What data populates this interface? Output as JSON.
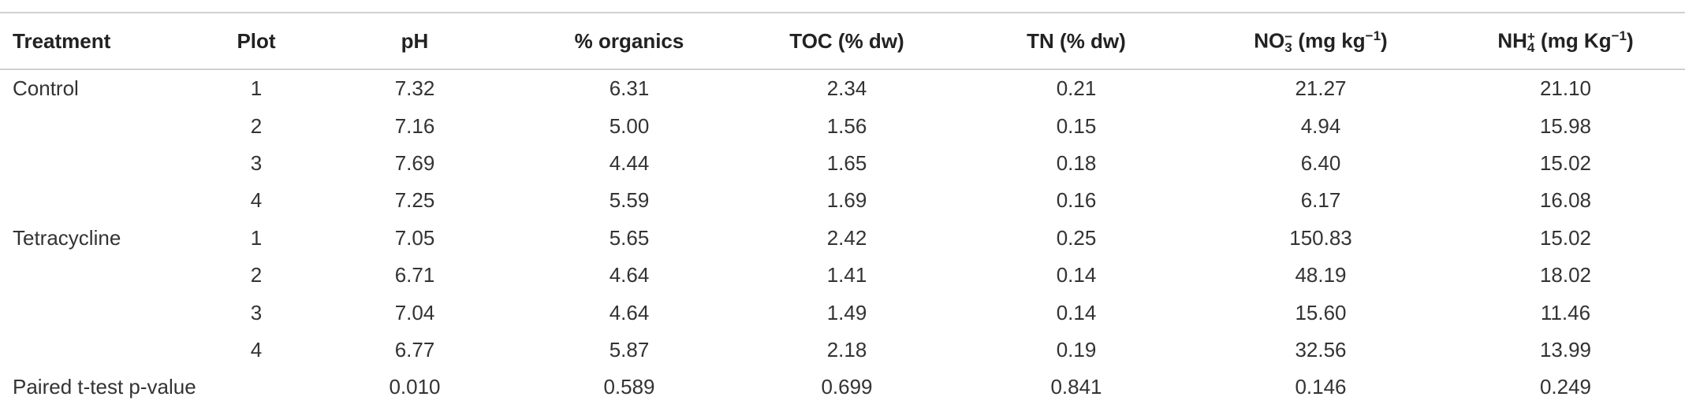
{
  "table": {
    "header": [
      [
        {
          "text": "Treatment"
        }
      ],
      [
        {
          "text": "Plot"
        }
      ],
      [
        {
          "text": "pH"
        }
      ],
      [
        {
          "text": "% organics"
        }
      ],
      [
        {
          "text": "TOC (% dw)"
        }
      ],
      [
        {
          "text": "TN (% dw)"
        }
      ],
      [
        {
          "text": "NO"
        },
        {
          "sub": "3",
          "sup": "−"
        },
        {
          "text": " (mg kg"
        },
        {
          "sup": "−1"
        },
        {
          "text": ")"
        }
      ],
      [
        {
          "text": "NH"
        },
        {
          "sub": "4",
          "sup": "+"
        },
        {
          "text": " (mg Kg"
        },
        {
          "sup": "−1"
        },
        {
          "text": ")"
        }
      ]
    ],
    "groups": [
      {
        "treatment": "Control",
        "rows": [
          [
            "1",
            "7.32",
            "6.31",
            "2.34",
            "0.21",
            "21.27",
            "21.10"
          ],
          [
            "2",
            "7.16",
            "5.00",
            "1.56",
            "0.15",
            "4.94",
            "15.98"
          ],
          [
            "3",
            "7.69",
            "4.44",
            "1.65",
            "0.18",
            "6.40",
            "15.02"
          ],
          [
            "4",
            "7.25",
            "5.59",
            "1.69",
            "0.16",
            "6.17",
            "16.08"
          ]
        ]
      },
      {
        "treatment": "Tetracycline",
        "rows": [
          [
            "1",
            "7.05",
            "5.65",
            "2.42",
            "0.25",
            "150.83",
            "15.02"
          ],
          [
            "2",
            "6.71",
            "4.64",
            "1.41",
            "0.14",
            "48.19",
            "18.02"
          ],
          [
            "3",
            "7.04",
            "4.64",
            "1.49",
            "0.14",
            "15.60",
            "11.46"
          ],
          [
            "4",
            "6.77",
            "5.87",
            "2.18",
            "0.19",
            "32.56",
            "13.99"
          ]
        ]
      }
    ],
    "footer": {
      "label": "Paired t-test p-value",
      "values": [
        "0.010",
        "0.589",
        "0.699",
        "0.841",
        "0.146",
        "0.249"
      ]
    }
  }
}
